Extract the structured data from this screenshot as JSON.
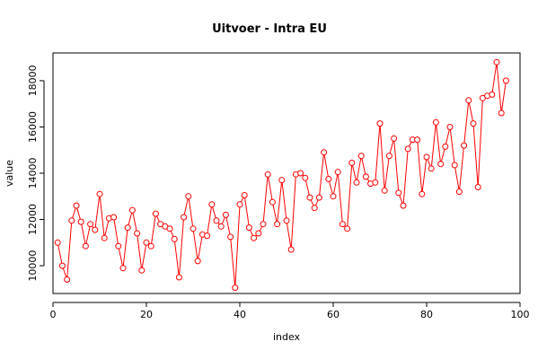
{
  "chart_data": {
    "type": "line",
    "title": "Uitvoer - Intra EU",
    "xlabel": "index",
    "ylabel": "value",
    "xlim": [
      0,
      100
    ],
    "ylim": [
      8800,
      19200
    ],
    "xticks": [
      0,
      20,
      40,
      60,
      80,
      100
    ],
    "yticks": [
      10000,
      12000,
      14000,
      16000,
      18000
    ],
    "grid": false,
    "line_color": "#ff0000",
    "marker": "open-circle",
    "series": [
      {
        "x": [
          1,
          2,
          3,
          4,
          5,
          6,
          7,
          8,
          9,
          10,
          11,
          12,
          13,
          14,
          15,
          16,
          17,
          18,
          19,
          20,
          21,
          22,
          23,
          24,
          25,
          26,
          27,
          28,
          29,
          30,
          31,
          32,
          33,
          34,
          35,
          36,
          37,
          38,
          39,
          40,
          41,
          42,
          43,
          44,
          45,
          46,
          47,
          48,
          49,
          50,
          51,
          52,
          53,
          54,
          55,
          56,
          57,
          58,
          59,
          60,
          61,
          62,
          63,
          64,
          65,
          66,
          67,
          68,
          69,
          70,
          71,
          72,
          73,
          74,
          75,
          76,
          77,
          78,
          79,
          80,
          81,
          82,
          83,
          84,
          85,
          86,
          87,
          88,
          89,
          90,
          91,
          92,
          93,
          94,
          95,
          96,
          97
        ],
        "values": [
          11000,
          10000,
          9400,
          11950,
          12600,
          11900,
          10850,
          11800,
          11550,
          13100,
          11200,
          12050,
          12100,
          10850,
          9900,
          11650,
          12400,
          11400,
          9800,
          11000,
          10850,
          12250,
          11800,
          11700,
          11600,
          11150,
          9500,
          12100,
          13000,
          11600,
          10200,
          11350,
          11300,
          12650,
          11950,
          11700,
          12200,
          11250,
          9050,
          12650,
          13050,
          11650,
          11200,
          11400,
          11800,
          13950,
          12750,
          11800,
          13700,
          11950,
          10700,
          13950,
          14000,
          13800,
          12950,
          12500,
          12950,
          14900,
          13750,
          13000,
          14050,
          11800,
          11600,
          14450,
          13600,
          14750,
          13850,
          13550,
          13600,
          16150,
          13250,
          14750,
          15500,
          13150,
          12600,
          15050,
          15450,
          15450,
          13100,
          14700,
          14200,
          16200,
          14400,
          15150,
          16000,
          14350,
          13200,
          15200,
          17150,
          16150,
          13400,
          17250,
          17350,
          17400,
          18800,
          16600,
          18000
        ]
      }
    ]
  }
}
